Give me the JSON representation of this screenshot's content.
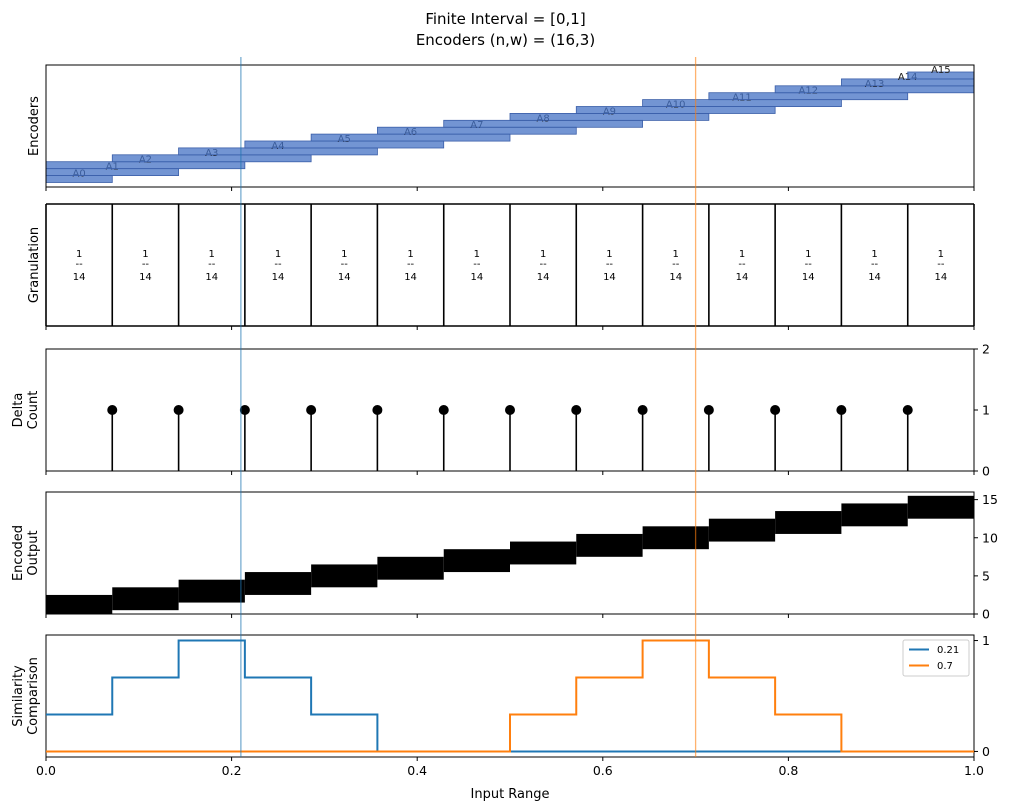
{
  "chart_data": {
    "title_lines": [
      "Finite Interval = [0,1]",
      "Encoders (n,w) = (16,3)"
    ],
    "type": "line",
    "xlabel": "Input Range",
    "xlim": [
      0,
      1
    ],
    "x_ticks": [
      0.0,
      0.2,
      0.4,
      0.6,
      0.8,
      1.0
    ],
    "x_tick_labels": [
      "0.0",
      "0.2",
      "0.4",
      "0.6",
      "0.8",
      "1.0"
    ],
    "markers": [
      {
        "value": 0.21,
        "color": "#1f77b4"
      },
      {
        "value": 0.7,
        "color": "#ff7f0e"
      }
    ],
    "encoders": {
      "ylabel": "Encoders",
      "color": "#4472c4",
      "n": 16,
      "w": 3,
      "labels": [
        "A0",
        "A1",
        "A2",
        "A3",
        "A4",
        "A5",
        "A6",
        "A7",
        "A8",
        "A9",
        "A10",
        "A11",
        "A12",
        "A13",
        "A14",
        "A15"
      ]
    },
    "granulation": {
      "ylabel": "Granulation",
      "boundaries": [
        0,
        0.0714,
        0.1429,
        0.2143,
        0.2857,
        0.3571,
        0.4286,
        0.5,
        0.5714,
        0.6429,
        0.7143,
        0.7857,
        0.8571,
        0.9286,
        1.0
      ],
      "cell_label": [
        "1",
        "--",
        "14"
      ]
    },
    "delta_count": {
      "ylabel": [
        "Delta",
        "Count"
      ],
      "ylim": [
        0,
        2
      ],
      "y_ticks": [
        0,
        1,
        2
      ],
      "x": [
        0.0714,
        0.1429,
        0.2143,
        0.2857,
        0.3571,
        0.4286,
        0.5,
        0.5714,
        0.6429,
        0.7143,
        0.7857,
        0.8571,
        0.9286
      ],
      "values": [
        1,
        1,
        1,
        1,
        1,
        1,
        1,
        1,
        1,
        1,
        1,
        1,
        1
      ]
    },
    "encoded_output": {
      "ylabel": [
        "Encoded",
        "Output"
      ],
      "ylim": [
        0,
        16
      ],
      "y_ticks": [
        0,
        5,
        10,
        15
      ],
      "segments": [
        {
          "x": [
            0.0,
            0.0714
          ],
          "bits": [
            0,
            2
          ]
        },
        {
          "x": [
            0.0714,
            0.1429
          ],
          "bits": [
            1,
            3
          ]
        },
        {
          "x": [
            0.1429,
            0.2143
          ],
          "bits": [
            2,
            4
          ]
        },
        {
          "x": [
            0.2143,
            0.2857
          ],
          "bits": [
            3,
            5
          ]
        },
        {
          "x": [
            0.2857,
            0.3571
          ],
          "bits": [
            4,
            6
          ]
        },
        {
          "x": [
            0.3571,
            0.4286
          ],
          "bits": [
            5,
            7
          ]
        },
        {
          "x": [
            0.4286,
            0.5
          ],
          "bits": [
            6,
            8
          ]
        },
        {
          "x": [
            0.5,
            0.5714
          ],
          "bits": [
            7,
            9
          ]
        },
        {
          "x": [
            0.5714,
            0.6429
          ],
          "bits": [
            8,
            10
          ]
        },
        {
          "x": [
            0.6429,
            0.7143
          ],
          "bits": [
            9,
            11
          ]
        },
        {
          "x": [
            0.7143,
            0.7857
          ],
          "bits": [
            10,
            12
          ]
        },
        {
          "x": [
            0.7857,
            0.8571
          ],
          "bits": [
            11,
            13
          ]
        },
        {
          "x": [
            0.8571,
            0.9286
          ],
          "bits": [
            12,
            14
          ]
        },
        {
          "x": [
            0.9286,
            1.0
          ],
          "bits": [
            13,
            15
          ]
        }
      ]
    },
    "similarity": {
      "ylabel": [
        "Similarity",
        "Comparison"
      ],
      "ylim": [
        -0.05,
        1.05
      ],
      "y_ticks": [
        0,
        1
      ],
      "legend_position": "top-right",
      "series": [
        {
          "name": "0.21",
          "color": "#1f77b4",
          "x": [
            0.0,
            0.0714,
            0.0714,
            0.1429,
            0.1429,
            0.2143,
            0.2143,
            0.2857,
            0.2857,
            0.3571,
            0.3571,
            0.8571,
            0.8571,
            1.0
          ],
          "y": [
            0.333,
            0.333,
            0.667,
            0.667,
            1.0,
            1.0,
            0.667,
            0.667,
            0.333,
            0.333,
            0.0,
            0.0,
            0.0,
            0.0
          ]
        },
        {
          "name": "0.7",
          "color": "#ff7f0e",
          "x": [
            0.0,
            0.5,
            0.5,
            0.5714,
            0.5714,
            0.6429,
            0.6429,
            0.7143,
            0.7143,
            0.7857,
            0.7857,
            0.8571,
            0.8571,
            1.0
          ],
          "y": [
            0.0,
            0.0,
            0.333,
            0.333,
            0.667,
            0.667,
            1.0,
            1.0,
            0.667,
            0.667,
            0.333,
            0.333,
            0.0,
            0.0
          ]
        }
      ]
    }
  }
}
